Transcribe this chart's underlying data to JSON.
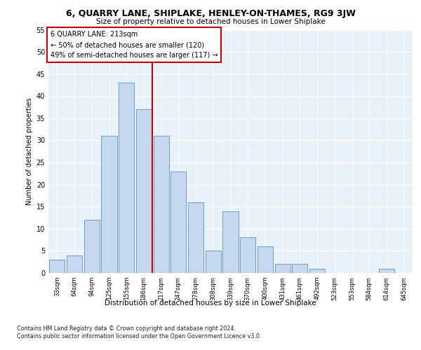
{
  "title1": "6, QUARRY LANE, SHIPLAKE, HENLEY-ON-THAMES, RG9 3JW",
  "title2": "Size of property relative to detached houses in Lower Shiplake",
  "xlabel": "Distribution of detached houses by size in Lower Shiplake",
  "ylabel": "Number of detached properties",
  "categories": [
    "33sqm",
    "64sqm",
    "94sqm",
    "125sqm",
    "155sqm",
    "186sqm",
    "217sqm",
    "247sqm",
    "278sqm",
    "308sqm",
    "339sqm",
    "370sqm",
    "400sqm",
    "431sqm",
    "461sqm",
    "492sqm",
    "523sqm",
    "553sqm",
    "584sqm",
    "614sqm",
    "645sqm"
  ],
  "values": [
    3,
    4,
    12,
    31,
    43,
    37,
    31,
    23,
    16,
    5,
    14,
    8,
    6,
    2,
    2,
    1,
    0,
    0,
    0,
    1,
    0
  ],
  "bar_color": "#c5d8f0",
  "bar_edge_color": "#6b9ec8",
  "annotation_box_text": "6 QUARRY LANE: 213sqm\n← 50% of detached houses are smaller (120)\n49% of semi-detached houses are larger (117) →",
  "annotation_box_color": "#ffffff",
  "annotation_box_edge_color": "#cc0000",
  "vline_color": "#cc0000",
  "footer1": "Contains HM Land Registry data © Crown copyright and database right 2024.",
  "footer2": "Contains public sector information licensed under the Open Government Licence v3.0.",
  "background_color": "#e8f0f8",
  "ylim": [
    0,
    55
  ],
  "yticks": [
    0,
    5,
    10,
    15,
    20,
    25,
    30,
    35,
    40,
    45,
    50,
    55
  ]
}
